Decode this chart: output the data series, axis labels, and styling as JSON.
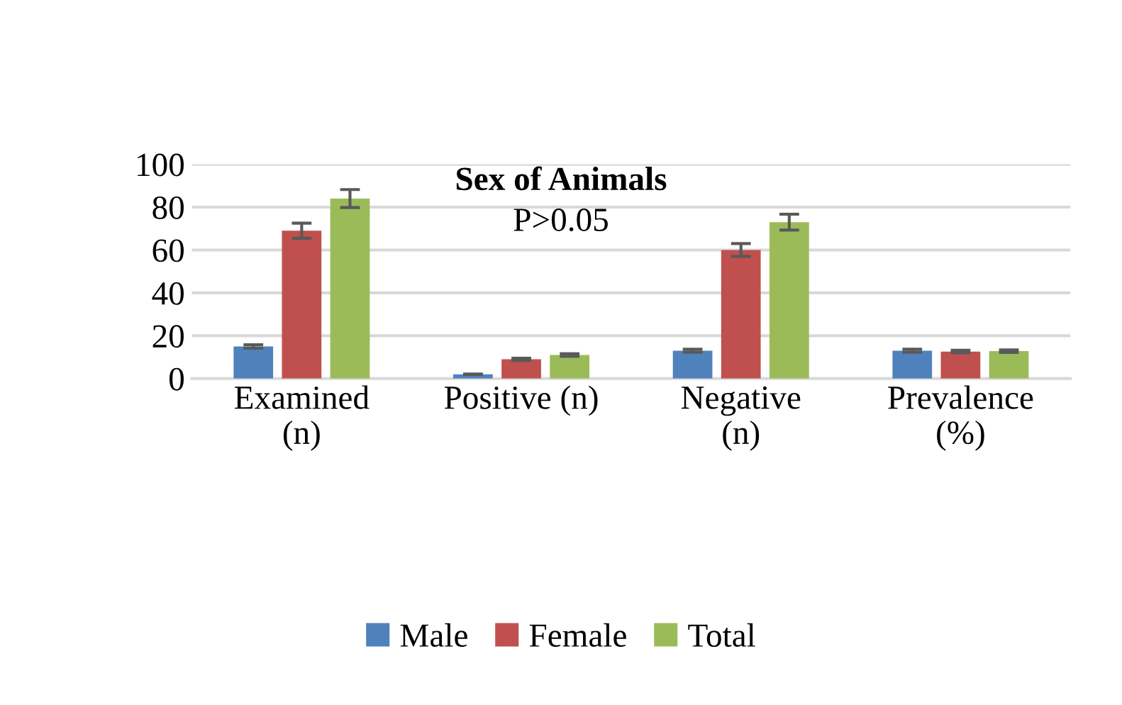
{
  "chart_data": {
    "type": "bar",
    "title": "Sex of Animals",
    "subtitle": "P>0.05",
    "categories": [
      "Examined\n(n)",
      "Positive (n)",
      "Negative\n(n)",
      "Prevalence\n(%)"
    ],
    "series": [
      {
        "name": "Male",
        "color": "#4f81bd",
        "values": [
          15,
          2,
          13,
          13
        ],
        "errors": [
          0.8,
          0.1,
          0.7,
          0.7
        ]
      },
      {
        "name": "Female",
        "color": "#c0504d",
        "values": [
          69,
          9,
          60,
          12.6
        ],
        "errors": [
          3.5,
          0.5,
          3,
          0.6
        ]
      },
      {
        "name": "Total",
        "color": "#9bbb59",
        "values": [
          84,
          11,
          73,
          12.8
        ],
        "errors": [
          4.2,
          0.6,
          3.7,
          0.6
        ]
      }
    ],
    "ylim": [
      0,
      100
    ],
    "yticks": [
      0,
      20,
      40,
      60,
      80,
      100
    ],
    "grid": "y",
    "legend": "bottom"
  }
}
